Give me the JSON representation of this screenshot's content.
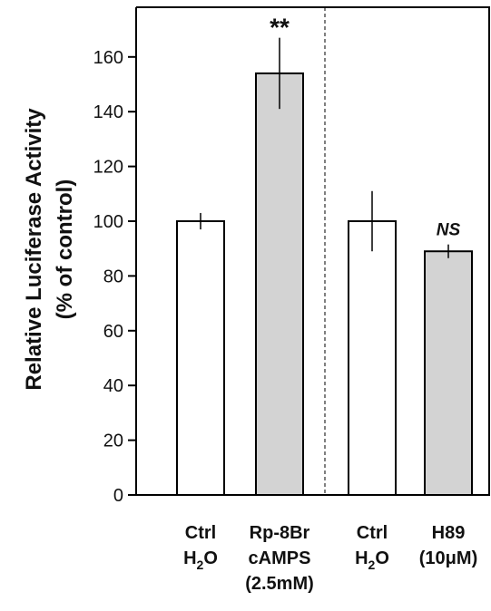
{
  "chart_data": {
    "type": "bar",
    "ylabel_line1": "Relative Luciferase Activity",
    "ylabel_line2": "(% of control)",
    "ylim": [
      0,
      175
    ],
    "yticks": [
      0,
      20,
      40,
      60,
      80,
      100,
      120,
      140,
      160
    ],
    "grid": false,
    "legend": "none",
    "bars": [
      {
        "label_lines": [
          "Ctrl",
          "H2O"
        ],
        "value": 100,
        "error": 3,
        "color": "#ffffff",
        "significance": ""
      },
      {
        "label_lines": [
          "Rp-8Br",
          "cAMPS",
          "(2.5mM)"
        ],
        "value": 154,
        "error": 13,
        "color": "#d3d3d3",
        "significance": "**"
      },
      {
        "label_lines": [
          "Ctrl",
          "H2O"
        ],
        "value": 100,
        "error": 11,
        "color": "#ffffff",
        "significance": ""
      },
      {
        "label_lines": [
          "H89",
          "(10μM)"
        ],
        "value": 89,
        "error": 2.5,
        "color": "#d3d3d3",
        "significance": "NS"
      }
    ],
    "divider_after_bar": 2
  }
}
